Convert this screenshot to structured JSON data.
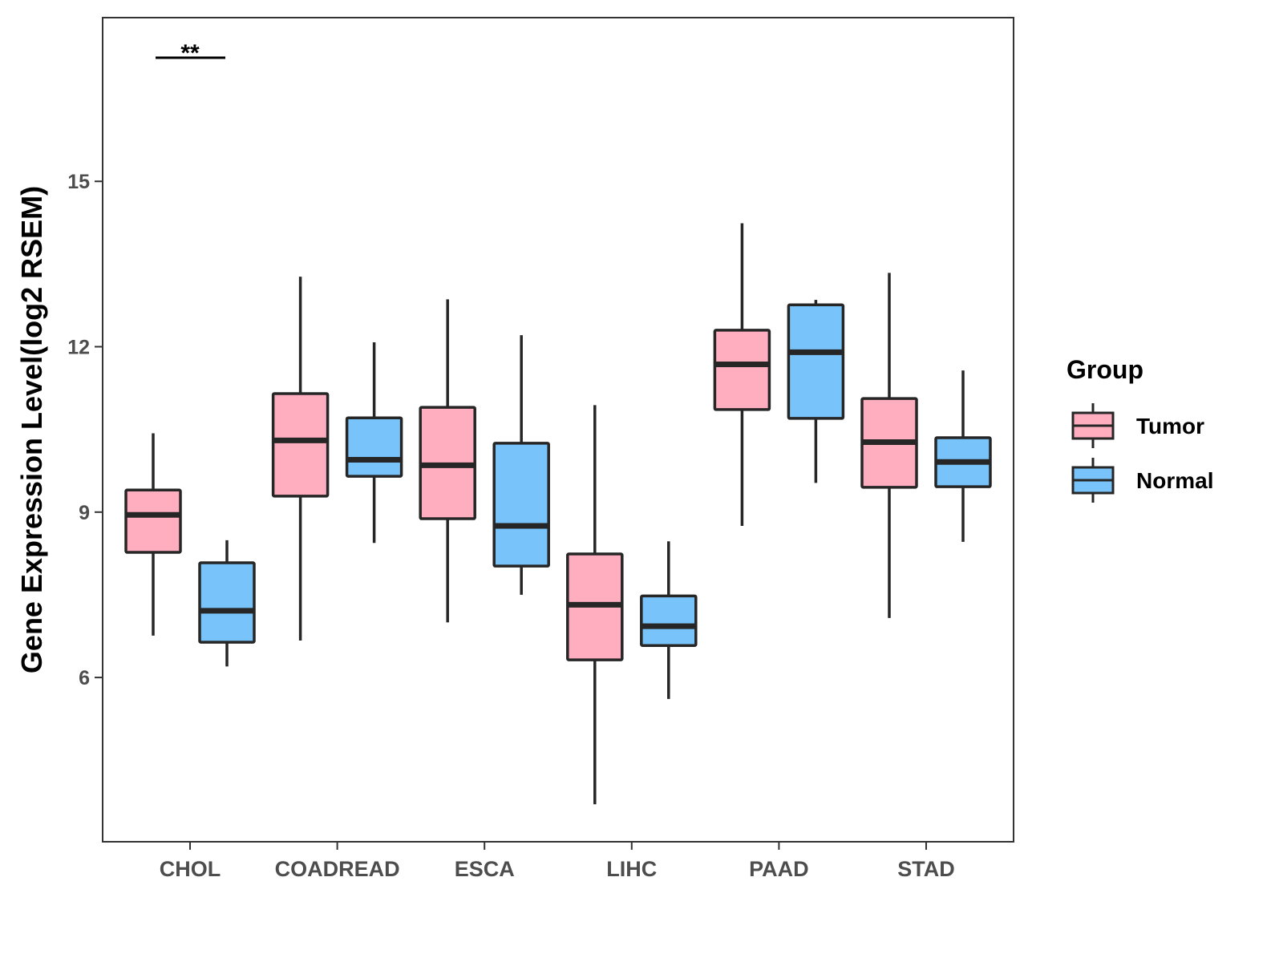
{
  "chart_data": {
    "type": "boxplot",
    "title": "",
    "xlabel": "",
    "ylabel": "Gene Expression Level(log2 RSEM)",
    "ylim": [
      3.02,
      17.97
    ],
    "yticks": [
      6,
      9,
      12,
      15
    ],
    "categories": [
      "CHOL",
      "COADREAD",
      "ESCA",
      "LIHC",
      "PAAD",
      "STAD"
    ],
    "legend": {
      "title": "Group",
      "position": "right",
      "entries": [
        "Tumor",
        "Normal"
      ]
    },
    "colors": {
      "Tumor": "#FFAEC0",
      "Normal": "#78C3FA",
      "stroke": "#262626"
    },
    "series": [
      {
        "name": "Tumor",
        "boxes": [
          {
            "min": 6.76,
            "q1": 8.27,
            "median": 8.95,
            "q3": 9.4,
            "max": 10.43
          },
          {
            "min": 6.67,
            "q1": 9.29,
            "median": 10.3,
            "q3": 11.15,
            "max": 13.27
          },
          {
            "min": 7.0,
            "q1": 8.88,
            "median": 9.85,
            "q3": 10.9,
            "max": 12.86
          },
          {
            "min": 3.7,
            "q1": 6.32,
            "median": 7.32,
            "q3": 8.24,
            "max": 10.94
          },
          {
            "min": 8.75,
            "q1": 10.86,
            "median": 11.68,
            "q3": 12.3,
            "max": 14.24
          },
          {
            "min": 7.08,
            "q1": 9.45,
            "median": 10.27,
            "q3": 11.06,
            "max": 13.34
          }
        ]
      },
      {
        "name": "Normal",
        "boxes": [
          {
            "min": 6.2,
            "q1": 6.64,
            "median": 7.21,
            "q3": 8.08,
            "max": 8.49
          },
          {
            "min": 8.44,
            "q1": 9.65,
            "median": 9.95,
            "q3": 10.71,
            "max": 12.08
          },
          {
            "min": 7.5,
            "q1": 8.02,
            "median": 8.75,
            "q3": 10.25,
            "max": 12.21
          },
          {
            "min": 5.61,
            "q1": 6.58,
            "median": 6.93,
            "q3": 7.48,
            "max": 8.47
          },
          {
            "min": 9.53,
            "q1": 10.7,
            "median": 11.9,
            "q3": 12.76,
            "max": 12.85
          },
          {
            "min": 8.46,
            "q1": 9.46,
            "median": 9.91,
            "q3": 10.35,
            "max": 11.57
          }
        ]
      }
    ],
    "annotations": [
      {
        "category": "CHOL",
        "text": "**"
      }
    ]
  }
}
